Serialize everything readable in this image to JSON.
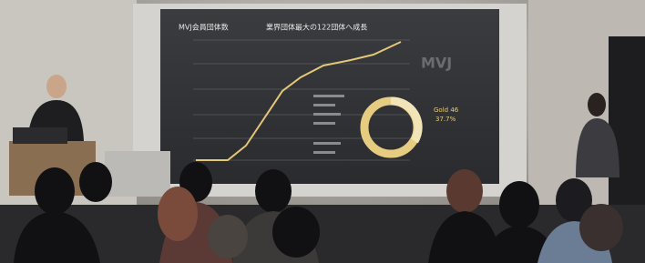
{
  "slide": {
    "title": "MVJ会員団体数",
    "subtitle": "業界団体最大の122団体へ成長",
    "watermark": "MVJ",
    "donut_label": "Gold 46",
    "donut_percent": "37.7%"
  }
}
